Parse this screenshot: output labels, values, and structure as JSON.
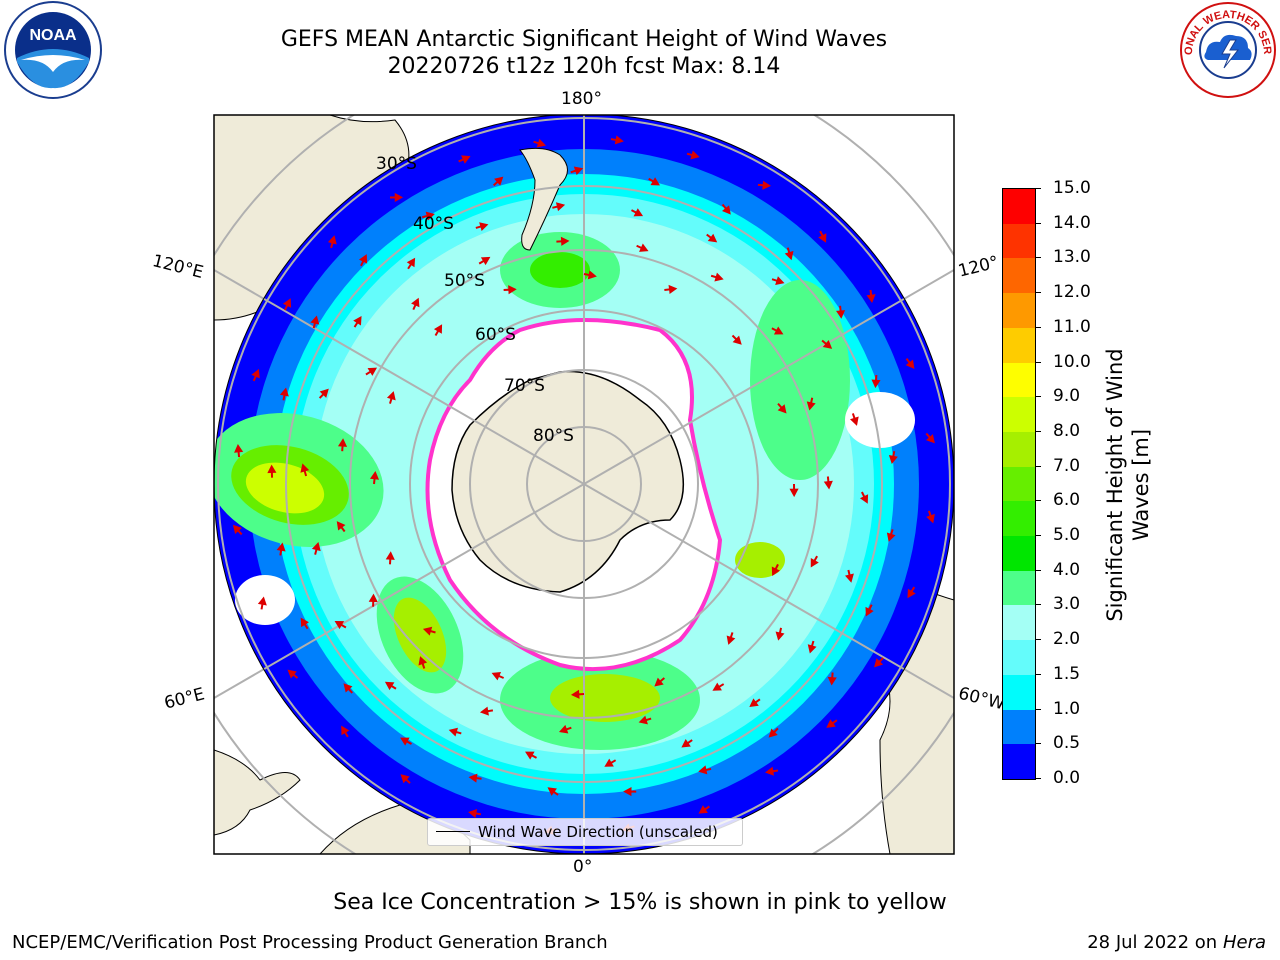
{
  "title_line1": "GEFS MEAN Antarctic Significant Height of Wind Waves",
  "title_line2": "20220726 t12z 120h fcst   Max: 8.14",
  "map": {
    "lon_labels": {
      "top": "180°",
      "bottom": "0°",
      "left_upper": "120°E",
      "left_lower": "60°E",
      "right_upper": "120°",
      "right_lower": "60°W"
    },
    "lat_labels": [
      "30°S",
      "40°S",
      "50°S",
      "60°S",
      "70°S",
      "80°S"
    ],
    "legend": "Wind Wave Direction (unscaled)",
    "colors": {
      "land": "#efebd9",
      "ice": "#ffffff",
      "ice_edge": "#ff33cc",
      "grid": "#b0b0b0",
      "arrow": "#dd0000"
    }
  },
  "colorbar": {
    "label_line1": "Significant Height of Wind",
    "label_line2": "Waves [m]",
    "ticks": [
      "15.0",
      "14.0",
      "13.0",
      "12.0",
      "11.0",
      "10.0",
      "9.0",
      "8.0",
      "7.0",
      "6.0",
      "5.0",
      "4.0",
      "3.0",
      "2.0",
      "1.5",
      "1.0",
      "0.5",
      "0.0"
    ],
    "colors": [
      "#fe0000",
      "#fe3300",
      "#fe6600",
      "#fe9900",
      "#fecc00",
      "#fefe00",
      "#ccff00",
      "#a6ef00",
      "#66ee00",
      "#33ee00",
      "#00e600",
      "#4dfe8a",
      "#a4fff5",
      "#64fcfb",
      "#00fcfc",
      "#0080fc",
      "#0000fe"
    ]
  },
  "note": "Sea Ice Concentration > 15% is shown in pink to yellow",
  "footer_left": "NCEP/EMC/Verification Post Processing Product Generation Branch",
  "footer_right_prefix": "28 Jul 2022 on ",
  "footer_right_italic": "Hera",
  "logos": {
    "noaa_text": "NOAA",
    "nws_text": "NATIONAL WEATHER SERVICE"
  }
}
